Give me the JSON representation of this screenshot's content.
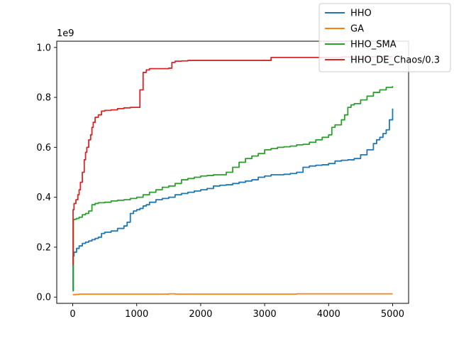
{
  "chart_data": {
    "type": "line",
    "title": "",
    "xlabel": "",
    "ylabel": "",
    "y_offset_label": "1e9",
    "xlim": [
      -250,
      5250
    ],
    "ylim": [
      -0.025,
      1.025
    ],
    "x_ticks": [
      0,
      1000,
      2000,
      3000,
      4000,
      5000
    ],
    "x_tick_labels": [
      "0",
      "1000",
      "2000",
      "3000",
      "4000",
      "5000"
    ],
    "y_ticks": [
      0.0,
      0.2,
      0.4,
      0.6,
      0.8,
      1.0
    ],
    "y_tick_labels": [
      "0.0",
      "0.2",
      "0.4",
      "0.6",
      "0.8",
      "1.0"
    ],
    "grid": false,
    "legend_position": "top-right",
    "series": [
      {
        "name": "HHO",
        "color": "#1f77b4",
        "x": [
          0,
          5,
          20,
          60,
          100,
          150,
          200,
          250,
          300,
          350,
          400,
          450,
          500,
          600,
          700,
          800,
          850,
          900,
          950,
          1000,
          1050,
          1100,
          1150,
          1200,
          1300,
          1400,
          1500,
          1600,
          1700,
          1800,
          1900,
          2000,
          2100,
          2200,
          2300,
          2400,
          2500,
          2600,
          2700,
          2800,
          2900,
          3000,
          3100,
          3200,
          3300,
          3400,
          3500,
          3600,
          3700,
          3800,
          3900,
          4000,
          4100,
          4200,
          4300,
          4400,
          4500,
          4600,
          4700,
          4750,
          4800,
          4850,
          4900,
          4950,
          5000
        ],
        "y": [
          0.025,
          0.165,
          0.18,
          0.195,
          0.205,
          0.215,
          0.22,
          0.225,
          0.23,
          0.235,
          0.24,
          0.255,
          0.26,
          0.265,
          0.275,
          0.285,
          0.3,
          0.335,
          0.345,
          0.35,
          0.355,
          0.365,
          0.37,
          0.38,
          0.39,
          0.395,
          0.4,
          0.41,
          0.415,
          0.42,
          0.425,
          0.43,
          0.435,
          0.445,
          0.448,
          0.45,
          0.455,
          0.46,
          0.465,
          0.47,
          0.48,
          0.485,
          0.49,
          0.49,
          0.492,
          0.495,
          0.5,
          0.52,
          0.525,
          0.528,
          0.53,
          0.535,
          0.545,
          0.548,
          0.55,
          0.555,
          0.57,
          0.59,
          0.615,
          0.63,
          0.64,
          0.655,
          0.67,
          0.71,
          0.755
        ]
      },
      {
        "name": "GA",
        "color": "#ff7f0e",
        "x": [
          0,
          50,
          100,
          200,
          500,
          1000,
          1500,
          1600,
          2000,
          2500,
          3000,
          3500,
          4000,
          4500,
          5000
        ],
        "y": [
          0.01,
          0.011,
          0.012,
          0.012,
          0.012,
          0.012,
          0.013,
          0.012,
          0.012,
          0.012,
          0.012,
          0.013,
          0.013,
          0.013,
          0.013
        ]
      },
      {
        "name": "HHO_SMA",
        "color": "#2ca02c",
        "x": [
          0,
          10,
          30,
          60,
          100,
          150,
          200,
          250,
          300,
          350,
          400,
          500,
          600,
          700,
          800,
          900,
          1000,
          1100,
          1200,
          1300,
          1400,
          1500,
          1600,
          1700,
          1800,
          1900,
          2000,
          2100,
          2200,
          2300,
          2400,
          2500,
          2600,
          2700,
          2800,
          2900,
          3000,
          3100,
          3200,
          3300,
          3400,
          3500,
          3600,
          3700,
          3800,
          3900,
          4000,
          4050,
          4100,
          4200,
          4250,
          4300,
          4350,
          4400,
          4500,
          4600,
          4700,
          4800,
          4900,
          5000
        ],
        "y": [
          0.025,
          0.31,
          0.312,
          0.315,
          0.32,
          0.33,
          0.335,
          0.345,
          0.37,
          0.375,
          0.378,
          0.38,
          0.385,
          0.388,
          0.39,
          0.395,
          0.4,
          0.41,
          0.42,
          0.43,
          0.44,
          0.445,
          0.455,
          0.47,
          0.475,
          0.48,
          0.485,
          0.487,
          0.49,
          0.49,
          0.5,
          0.52,
          0.54,
          0.555,
          0.565,
          0.575,
          0.59,
          0.595,
          0.6,
          0.602,
          0.605,
          0.61,
          0.612,
          0.62,
          0.63,
          0.64,
          0.65,
          0.68,
          0.69,
          0.71,
          0.73,
          0.76,
          0.77,
          0.775,
          0.79,
          0.805,
          0.82,
          0.83,
          0.84,
          0.845
        ]
      },
      {
        "name": "HHO_DE_Chaos/0.3",
        "color": "#d62728",
        "x": [
          0,
          5,
          20,
          50,
          80,
          100,
          120,
          150,
          180,
          200,
          220,
          250,
          280,
          300,
          320,
          350,
          400,
          450,
          500,
          600,
          700,
          800,
          900,
          1000,
          1050,
          1100,
          1150,
          1200,
          1500,
          1550,
          1600,
          1700,
          1800,
          2000,
          2500,
          3000,
          3100,
          3500,
          4000,
          4200,
          4500,
          5000
        ],
        "y": [
          0.13,
          0.35,
          0.375,
          0.39,
          0.41,
          0.43,
          0.46,
          0.5,
          0.55,
          0.58,
          0.6,
          0.63,
          0.65,
          0.68,
          0.7,
          0.72,
          0.73,
          0.745,
          0.748,
          0.75,
          0.755,
          0.758,
          0.76,
          0.76,
          0.83,
          0.9,
          0.91,
          0.915,
          0.917,
          0.94,
          0.945,
          0.946,
          0.948,
          0.948,
          0.948,
          0.948,
          0.96,
          0.96,
          0.96,
          0.962,
          0.963,
          0.963
        ]
      }
    ]
  }
}
